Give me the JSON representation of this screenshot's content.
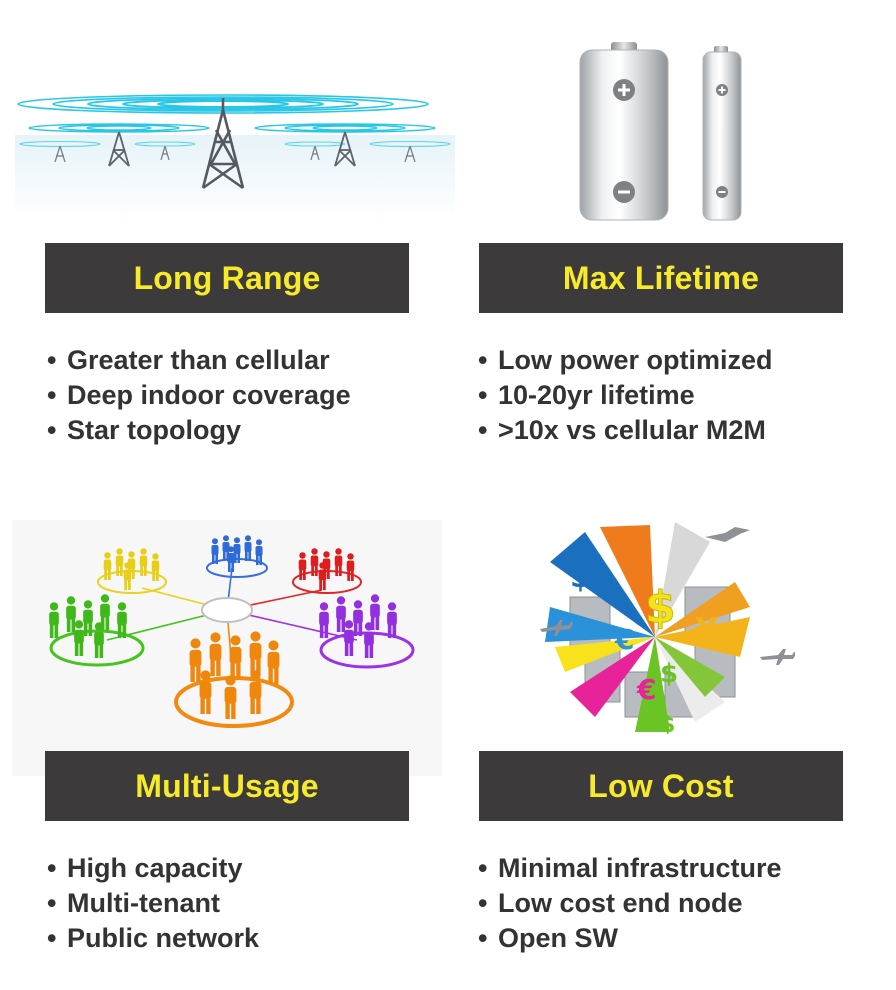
{
  "panels": {
    "long_range": {
      "title": "Long Range",
      "bullets": [
        "Greater than cellular",
        "Deep indoor coverage",
        "Star topology"
      ]
    },
    "max_lifetime": {
      "title": "Max Lifetime",
      "bullets": [
        "Low power optimized",
        "10-20yr lifetime",
        ">10x vs cellular M2M"
      ]
    },
    "multi_usage": {
      "title": "Multi-Usage",
      "bullets": [
        "High capacity",
        "Multi-tenant",
        "Public network"
      ]
    },
    "low_cost": {
      "title": "Low Cost",
      "bullets": [
        "Minimal infrastructure",
        "Low cost end node",
        "Open SW"
      ]
    }
  },
  "colors": {
    "banner_bg": "#3c3a3a",
    "banner_text": "#f6ea2a",
    "bullet_text": "#333333",
    "signal_cyan": "#27c6e6"
  },
  "icons": {
    "long_range": "radio-tower-icon",
    "max_lifetime": "battery-icon",
    "multi_usage": "people-groups-icon",
    "low_cost": "currency-city-icon"
  }
}
